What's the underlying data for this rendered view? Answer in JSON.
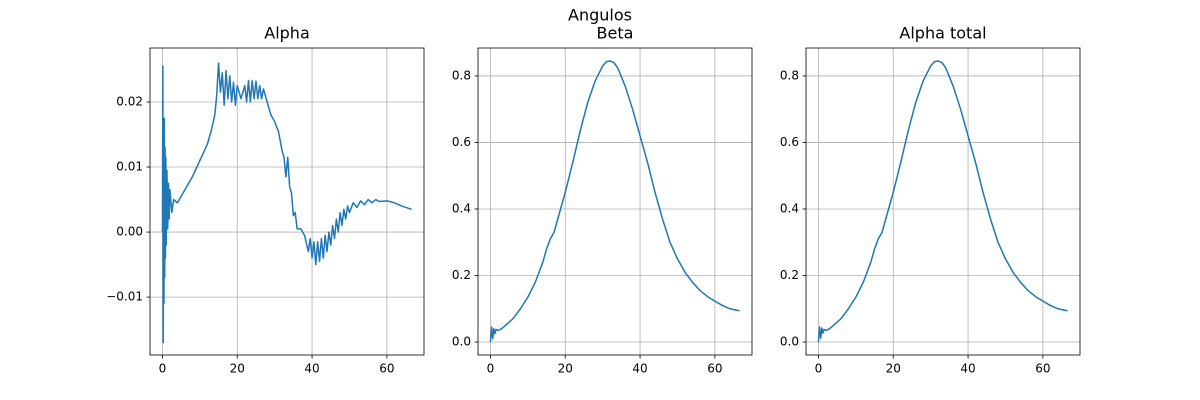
{
  "title": "Angulos",
  "chart_data": [
    {
      "type": "line",
      "title": "Alpha",
      "color": "#1f77b4",
      "grid": true,
      "xlim": [
        -3.33,
        69.93
      ],
      "ylim": [
        -0.0189,
        0.0283
      ],
      "xticks": [
        0,
        20,
        40,
        60
      ],
      "yticks": [
        {
          "value": -0.01,
          "label": "−0.01"
        },
        {
          "value": 0,
          "label": "0.00"
        },
        0.01,
        0.02
      ],
      "x": [
        0,
        0.1,
        0.2,
        0.3,
        0.4,
        0.5,
        0.6,
        0.7,
        0.8,
        0.9,
        1.0,
        1.2,
        1.4,
        1.6,
        1.8,
        2,
        2.5,
        3,
        4,
        5,
        6,
        8,
        10,
        12,
        13,
        14,
        14.5,
        15,
        15.5,
        16,
        16.5,
        17,
        17.5,
        18,
        18.5,
        19,
        19.5,
        20,
        21,
        22,
        22.5,
        23,
        23.5,
        24,
        24.5,
        25,
        25.5,
        26,
        26.5,
        27,
        28,
        29,
        30,
        31,
        32,
        32.5,
        33,
        33.5,
        34,
        34.5,
        35,
        35.5,
        36,
        37,
        38,
        39,
        39.5,
        40,
        40.5,
        41,
        41.5,
        42,
        42.5,
        43,
        43.5,
        44,
        44.5,
        45,
        45.5,
        46,
        46.5,
        47,
        47.5,
        48,
        48.5,
        49,
        49.5,
        50,
        51,
        52,
        53,
        54,
        55,
        56,
        57,
        58,
        60,
        62,
        64,
        66.6
      ],
      "values": [
        0,
        0.0255,
        -0.017,
        0.017,
        -0.011,
        0.0175,
        -0.007,
        0.013,
        -0.004,
        0.0115,
        -0.002,
        0.0095,
        0.0005,
        0.0075,
        0.002,
        0.0065,
        0.003,
        0.005,
        0.0045,
        0.0055,
        0.0065,
        0.0085,
        0.011,
        0.0135,
        0.0155,
        0.018,
        0.021,
        0.026,
        0.0215,
        0.0245,
        0.0195,
        0.0248,
        0.0205,
        0.024,
        0.02,
        0.023,
        0.0195,
        0.0225,
        0.0205,
        0.0225,
        0.02,
        0.0233,
        0.02,
        0.0233,
        0.0205,
        0.0232,
        0.0205,
        0.0225,
        0.0205,
        0.022,
        0.02,
        0.018,
        0.017,
        0.0155,
        0.0125,
        0.0115,
        0.0085,
        0.0115,
        0.007,
        0.006,
        0.0025,
        0.003,
        0.0005,
        0.0005,
        -0.0005,
        -0.003,
        -0.001,
        -0.004,
        -0.0015,
        -0.005,
        -0.0015,
        -0.0045,
        -0.001,
        -0.004,
        -0.0005,
        -0.003,
        0,
        -0.002,
        0.001,
        -0.001,
        0.002,
        0,
        0.003,
        0.001,
        0.0035,
        0.002,
        0.004,
        0.003,
        0.0045,
        0.0038,
        0.0048,
        0.0042,
        0.005,
        0.0045,
        0.005,
        0.0047,
        0.0048,
        0.0045,
        0.004,
        0.0035
      ]
    },
    {
      "type": "line",
      "title": "Beta",
      "color": "#1f77b4",
      "grid": true,
      "xlim": [
        -3.33,
        69.93
      ],
      "ylim": [
        -0.039,
        0.884
      ],
      "xticks": [
        0,
        20,
        40,
        60
      ],
      "yticks": [
        {
          "value": 0,
          "label": "0.0"
        },
        0.2,
        0.4,
        0.6,
        0.8
      ],
      "x": [
        0,
        0.3,
        0.6,
        0.9,
        1.2,
        1.5,
        2,
        3,
        4,
        6,
        8,
        10,
        12,
        14,
        15,
        16,
        17,
        18,
        20,
        22,
        24,
        26,
        28,
        30,
        31,
        32,
        33,
        34,
        36,
        38,
        40,
        42,
        44,
        46,
        48,
        50,
        52,
        54,
        56,
        58,
        60,
        62,
        64,
        66.6
      ],
      "values": [
        0,
        0.045,
        0.01,
        0.04,
        0.025,
        0.038,
        0.035,
        0.04,
        0.05,
        0.07,
        0.1,
        0.135,
        0.18,
        0.24,
        0.28,
        0.31,
        0.33,
        0.37,
        0.45,
        0.54,
        0.635,
        0.72,
        0.785,
        0.83,
        0.843,
        0.845,
        0.84,
        0.825,
        0.77,
        0.7,
        0.62,
        0.54,
        0.45,
        0.37,
        0.3,
        0.25,
        0.21,
        0.18,
        0.155,
        0.137,
        0.123,
        0.11,
        0.1,
        0.094
      ]
    },
    {
      "type": "line",
      "title": "Alpha total",
      "color": "#1f77b4",
      "grid": true,
      "xlim": [
        -3.33,
        69.93
      ],
      "ylim": [
        -0.039,
        0.884
      ],
      "xticks": [
        0,
        20,
        40,
        60
      ],
      "yticks": [
        {
          "value": 0,
          "label": "0.0"
        },
        0.2,
        0.4,
        0.6,
        0.8
      ],
      "x": [
        0,
        0.3,
        0.6,
        0.9,
        1.2,
        1.5,
        2,
        3,
        4,
        6,
        8,
        10,
        12,
        14,
        15,
        16,
        17,
        18,
        20,
        22,
        24,
        26,
        28,
        30,
        31,
        32,
        33,
        34,
        36,
        38,
        40,
        42,
        44,
        46,
        48,
        50,
        52,
        54,
        56,
        58,
        60,
        62,
        64,
        66.6
      ],
      "values": [
        0,
        0.045,
        0.012,
        0.042,
        0.027,
        0.038,
        0.035,
        0.04,
        0.05,
        0.07,
        0.1,
        0.135,
        0.18,
        0.24,
        0.28,
        0.31,
        0.33,
        0.37,
        0.45,
        0.54,
        0.635,
        0.72,
        0.785,
        0.83,
        0.843,
        0.845,
        0.84,
        0.825,
        0.77,
        0.7,
        0.62,
        0.54,
        0.45,
        0.37,
        0.3,
        0.25,
        0.21,
        0.18,
        0.155,
        0.137,
        0.123,
        0.11,
        0.1,
        0.094
      ]
    }
  ]
}
